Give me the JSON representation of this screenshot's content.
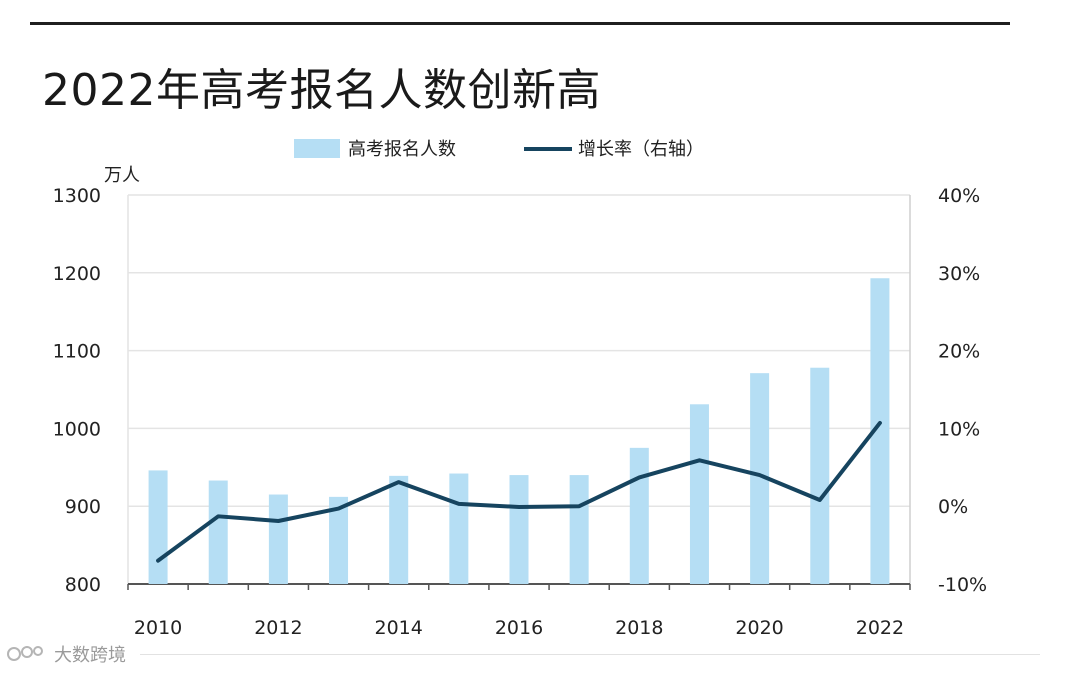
{
  "title": "2022年高考报名人数创新高",
  "watermark": {
    "text": "大数跨境",
    "icon": "logo-icon"
  },
  "colors": {
    "bar": "#b5def4",
    "line": "#16445f",
    "grid": "#e4e4e4",
    "axis": "#555555"
  },
  "chart_data": {
    "type": "bar",
    "title": "2022年高考报名人数创新高",
    "x": [
      2010,
      2011,
      2012,
      2013,
      2014,
      2015,
      2016,
      2017,
      2018,
      2019,
      2020,
      2021,
      2022
    ],
    "xtick_labels": [
      "2010",
      "2012",
      "2014",
      "2016",
      "2018",
      "2020",
      "2022"
    ],
    "left_axis": {
      "unit_label": "万人",
      "ylim": [
        800,
        1300
      ],
      "ticks": [
        "800",
        "900",
        "1000",
        "1100",
        "1200",
        "1300"
      ]
    },
    "right_axis": {
      "ylim": [
        -10,
        40
      ],
      "ticks": [
        "-10%",
        "0%",
        "10%",
        "20%",
        "30%",
        "40%"
      ]
    },
    "legend_position": "top-center",
    "grid": true,
    "series": [
      {
        "name": "高考报名人数",
        "type": "bar",
        "axis": "left",
        "values": [
          946,
          933,
          915,
          912,
          939,
          942,
          940,
          940,
          975,
          1031,
          1071,
          1078,
          1193
        ]
      },
      {
        "name": "增长率（右轴）",
        "type": "line",
        "axis": "right",
        "values": [
          -7.0,
          -1.3,
          -1.9,
          -0.3,
          3.1,
          0.3,
          -0.1,
          0.0,
          3.7,
          5.9,
          4.0,
          0.8,
          10.7
        ]
      }
    ]
  }
}
